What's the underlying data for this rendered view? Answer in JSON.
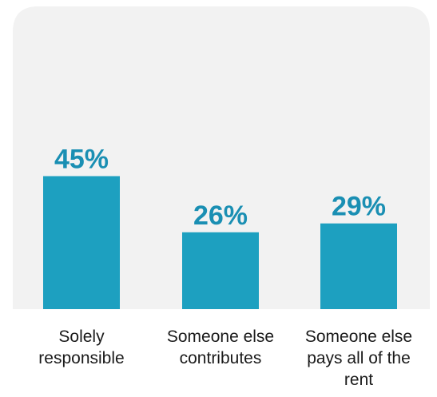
{
  "colors": {
    "bar": "#1da0c0",
    "value_label": "#1a8fb3",
    "panel": "#f2f2f2",
    "text": "#1a1a1a"
  },
  "chart_data": {
    "type": "bar",
    "categories": [
      "Solely responsible",
      "Someone else contributes",
      "Someone else pays all of the rent"
    ],
    "values": [
      45,
      26,
      29
    ],
    "value_labels": [
      "45%",
      "26%",
      "29%"
    ],
    "title": "",
    "xlabel": "",
    "ylabel": "",
    "ylim": [
      0,
      100
    ],
    "grid": false,
    "legend": "none"
  }
}
